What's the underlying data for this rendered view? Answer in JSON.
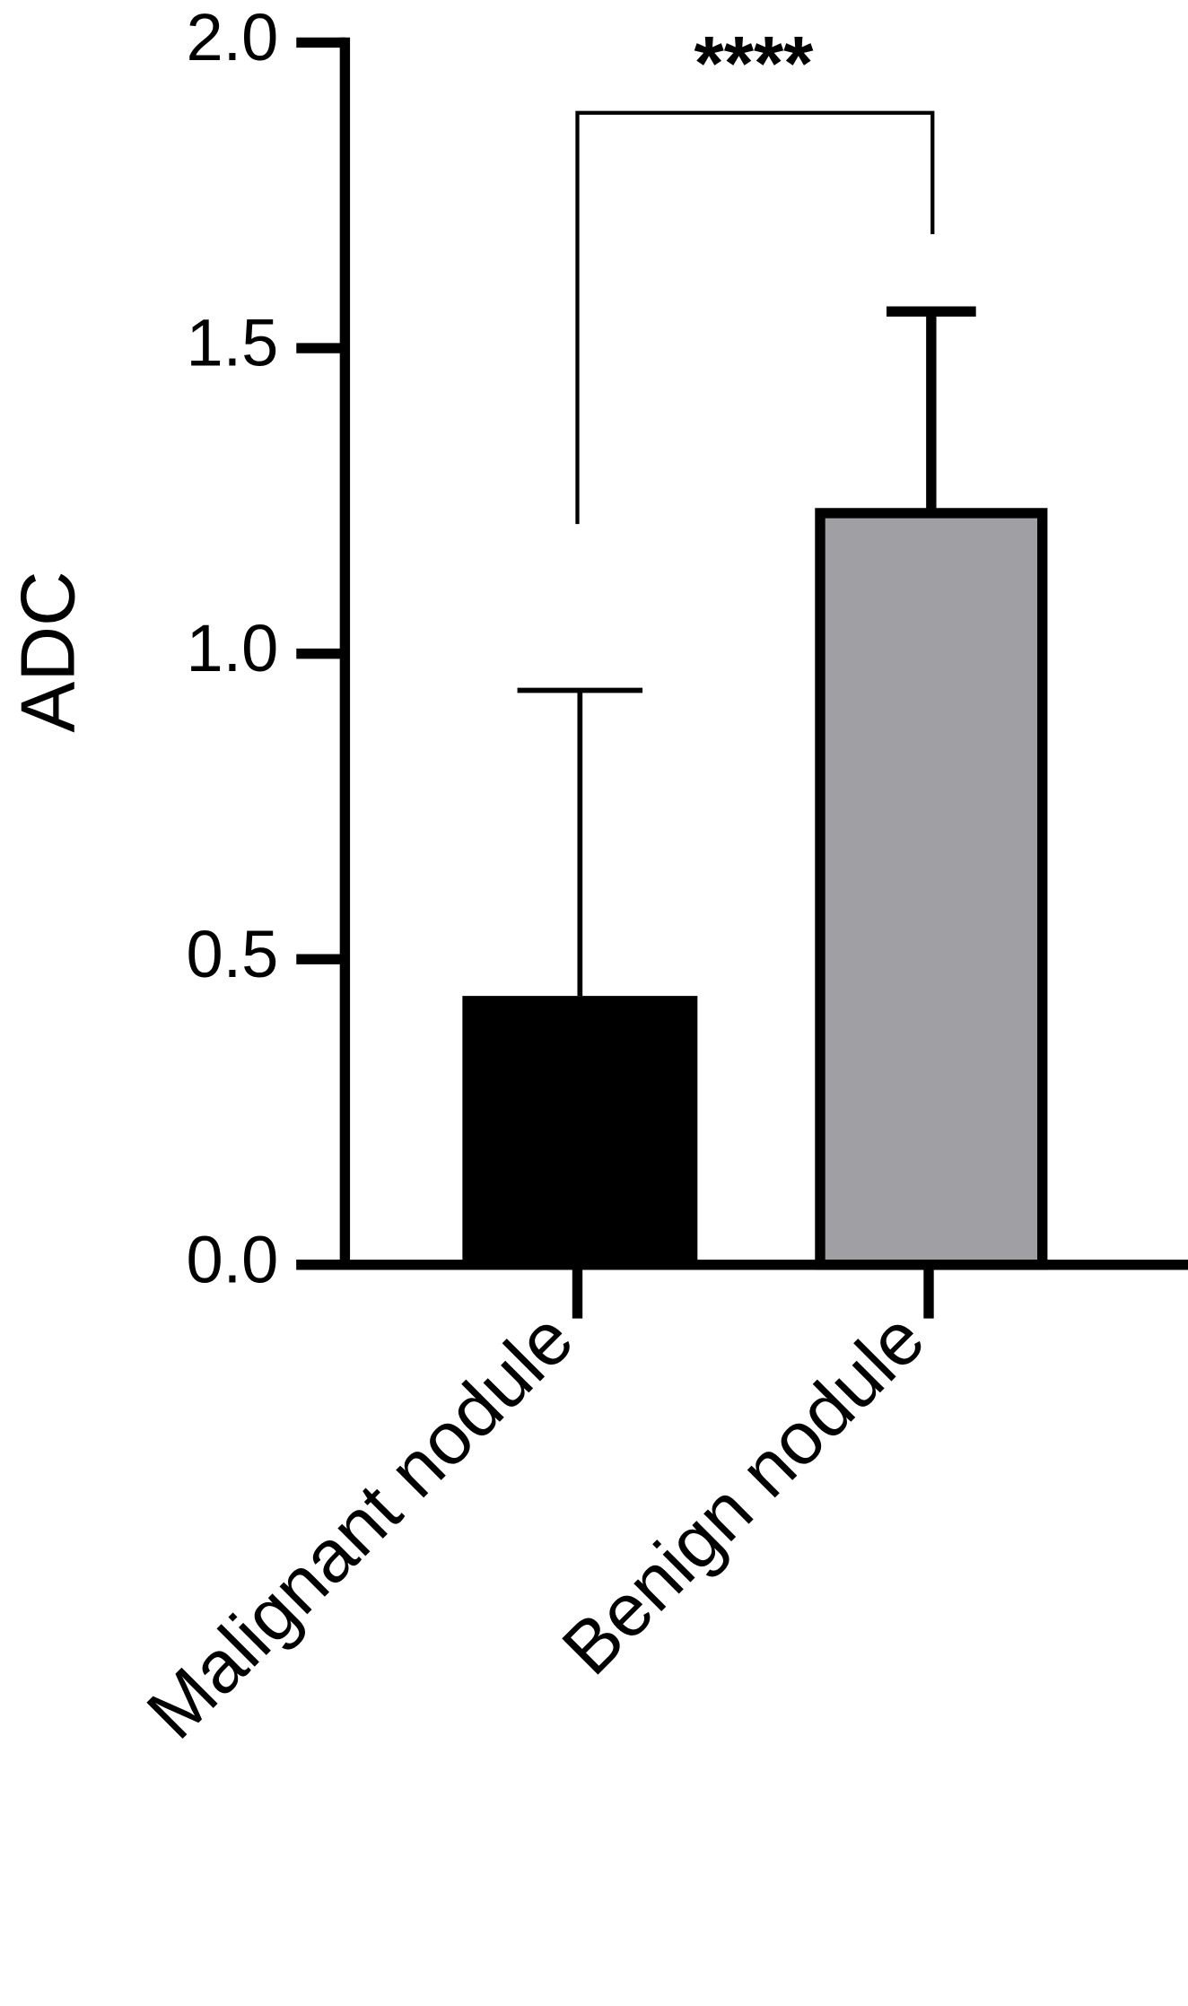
{
  "chart_data": {
    "type": "bar",
    "ylabel": "ADC",
    "categories": [
      "Malignant nodule",
      "Benign nodule"
    ],
    "values": [
      0.44,
      1.23
    ],
    "errors": [
      0.5,
      0.33
    ],
    "colors": [
      "#000000",
      "#a0a0a4"
    ],
    "ylim": [
      0,
      2.0
    ],
    "yticks": [
      {
        "value": 0,
        "label": "0.0"
      },
      {
        "value": 0.5,
        "label": "0.5"
      },
      {
        "value": 1.0,
        "label": "1.0"
      },
      {
        "value": 1.5,
        "label": "1.5"
      },
      {
        "value": 2.0,
        "label": "2.0"
      }
    ],
    "annotation": "****"
  }
}
